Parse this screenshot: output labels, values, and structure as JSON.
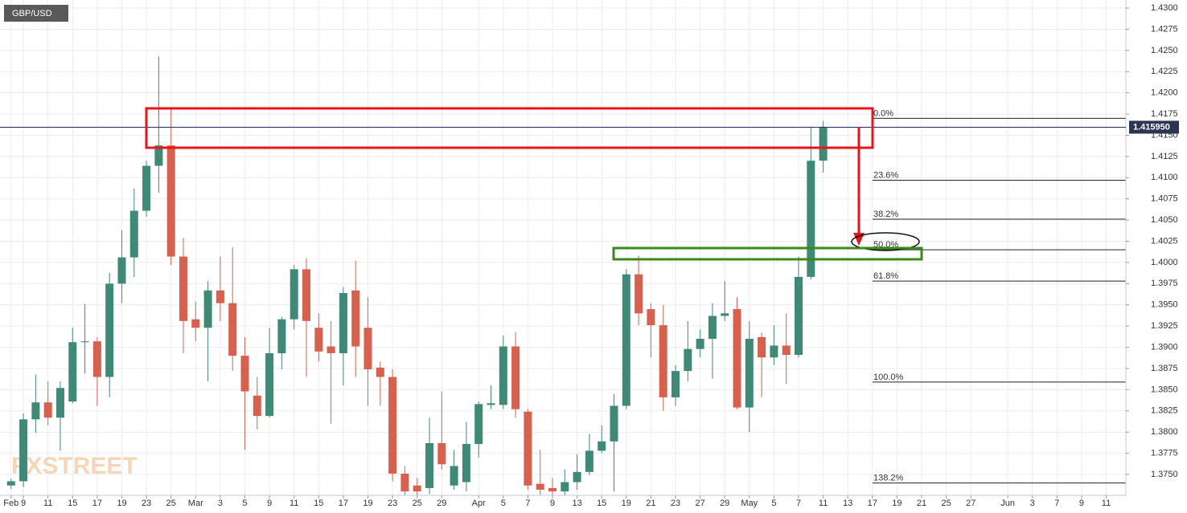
{
  "chart_data": {
    "type": "candlestick",
    "title": "GBP/USD",
    "watermark": "FXSTREET",
    "up_color": "#3e8a77",
    "down_color": "#d9604c",
    "xlim": [
      -0.9,
      90.6
    ],
    "ylim": [
      1.37254,
      1.43095
    ],
    "grid": true,
    "xticks": [
      {
        "value": 0,
        "label": "Feb"
      },
      {
        "value": 1,
        "label": "9"
      },
      {
        "value": 3,
        "label": "11"
      },
      {
        "value": 5,
        "label": "15"
      },
      {
        "value": 7,
        "label": "17"
      },
      {
        "value": 9,
        "label": "19"
      },
      {
        "value": 11,
        "label": "23"
      },
      {
        "value": 13,
        "label": "25"
      },
      {
        "value": 15,
        "label": "Mar"
      },
      {
        "value": 17,
        "label": "3"
      },
      {
        "value": 19,
        "label": "5"
      },
      {
        "value": 21,
        "label": "9"
      },
      {
        "value": 23,
        "label": "11"
      },
      {
        "value": 25,
        "label": "15"
      },
      {
        "value": 27,
        "label": "17"
      },
      {
        "value": 29,
        "label": "19"
      },
      {
        "value": 31,
        "label": "23"
      },
      {
        "value": 33,
        "label": "25"
      },
      {
        "value": 35,
        "label": "29"
      },
      {
        "value": 38,
        "label": "Apr"
      },
      {
        "value": 40,
        "label": "5"
      },
      {
        "value": 42,
        "label": "7"
      },
      {
        "value": 44,
        "label": "9"
      },
      {
        "value": 46,
        "label": "13"
      },
      {
        "value": 48,
        "label": "15"
      },
      {
        "value": 50,
        "label": "19"
      },
      {
        "value": 52,
        "label": "21"
      },
      {
        "value": 54,
        "label": "23"
      },
      {
        "value": 56,
        "label": "27"
      },
      {
        "value": 58,
        "label": "29"
      },
      {
        "value": 60,
        "label": "May"
      },
      {
        "value": 62,
        "label": "5"
      },
      {
        "value": 64,
        "label": "7"
      },
      {
        "value": 66,
        "label": "11"
      },
      {
        "value": 68,
        "label": "13"
      },
      {
        "value": 70,
        "label": "17"
      },
      {
        "value": 72,
        "label": "19"
      },
      {
        "value": 74,
        "label": "21"
      },
      {
        "value": 76,
        "label": "25"
      },
      {
        "value": 78,
        "label": "27"
      },
      {
        "value": 81,
        "label": "Jun"
      },
      {
        "value": 83,
        "label": "3"
      },
      {
        "value": 85,
        "label": "7"
      },
      {
        "value": 87,
        "label": "9"
      },
      {
        "value": 89,
        "label": "11"
      }
    ],
    "yticks": [
      {
        "value": 1.43,
        "label": "1.4300"
      },
      {
        "value": 1.4275,
        "label": "1.4275"
      },
      {
        "value": 1.425,
        "label": "1.4250"
      },
      {
        "value": 1.4225,
        "label": "1.4225"
      },
      {
        "value": 1.42,
        "label": "1.4200"
      },
      {
        "value": 1.4175,
        "label": "1.4175"
      },
      {
        "value": 1.415,
        "label": "1.4150"
      },
      {
        "value": 1.4125,
        "label": "1.4125"
      },
      {
        "value": 1.41,
        "label": "1.4100"
      },
      {
        "value": 1.4075,
        "label": "1.4075"
      },
      {
        "value": 1.405,
        "label": "1.4050"
      },
      {
        "value": 1.4025,
        "label": "1.4025"
      },
      {
        "value": 1.4,
        "label": "1.4000"
      },
      {
        "value": 1.3975,
        "label": "1.3975"
      },
      {
        "value": 1.395,
        "label": "1.3950"
      },
      {
        "value": 1.3925,
        "label": "1.3925"
      },
      {
        "value": 1.39,
        "label": "1.3900"
      },
      {
        "value": 1.3875,
        "label": "1.3875"
      },
      {
        "value": 1.385,
        "label": "1.3850"
      },
      {
        "value": 1.3825,
        "label": "1.3825"
      },
      {
        "value": 1.38,
        "label": "1.3800"
      },
      {
        "value": 1.3775,
        "label": "1.3775"
      },
      {
        "value": 1.375,
        "label": "1.3750"
      }
    ],
    "open": [
      1.3737,
      1.3742,
      1.3815,
      1.3835,
      1.3817,
      1.3836,
      1.3906,
      1.3907,
      1.3865,
      1.3975,
      1.4006,
      1.4061,
      1.4114,
      1.4138,
      1.4007,
      1.3933,
      1.3923,
      1.3967,
      1.3952,
      1.389,
      1.3843,
      1.3819,
      1.3893,
      1.3933,
      1.3992,
      1.3923,
      1.3901,
      1.3893,
      1.3967,
      1.3923,
      1.3876,
      1.3865,
      1.3751,
      1.3737,
      1.3734,
      1.3787,
      1.3737,
      1.3741,
      1.3786,
      1.3832,
      1.3832,
      1.3901,
      1.3824,
      1.3739,
      1.3734,
      1.373,
      1.3741,
      1.3753,
      1.3778,
      1.3789,
      1.3831,
      1.3986,
      1.3945,
      1.3926,
      1.3841,
      1.3872,
      1.3898,
      1.391,
      1.3937,
      1.3945,
      1.3829,
      1.3912,
      1.3888,
      1.3902,
      1.3891,
      1.3983,
      1.412
    ],
    "high": [
      1.3745,
      1.3822,
      1.3868,
      1.386,
      1.386,
      1.3923,
      1.3951,
      1.3912,
      1.3988,
      1.4038,
      1.4087,
      1.412,
      1.4243,
      1.4182,
      1.4029,
      1.3954,
      1.3978,
      1.4007,
      1.4018,
      1.3912,
      1.3865,
      1.3923,
      1.3936,
      1.3997,
      1.4005,
      1.394,
      1.3931,
      1.3971,
      1.4002,
      1.3959,
      1.3883,
      1.3874,
      1.376,
      1.3746,
      1.3817,
      1.3848,
      1.3779,
      1.3812,
      1.3836,
      1.3855,
      1.3914,
      1.3918,
      1.3827,
      1.3779,
      1.3746,
      1.3756,
      1.3774,
      1.3798,
      1.3808,
      1.3845,
      1.3992,
      1.4008,
      1.3952,
      1.395,
      1.3879,
      1.3931,
      1.3921,
      1.3952,
      1.3978,
      1.3959,
      1.3931,
      1.3917,
      1.3926,
      1.394,
      1.4007,
      1.416,
      1.4167
    ],
    "low": [
      1.3733,
      1.3735,
      1.3799,
      1.3808,
      1.3778,
      1.3834,
      1.3869,
      1.3831,
      1.3841,
      1.3952,
      1.3983,
      1.4054,
      1.4082,
      1.3997,
      1.3893,
      1.3907,
      1.386,
      1.3931,
      1.3872,
      1.3779,
      1.3803,
      1.3817,
      1.3874,
      1.3921,
      1.3865,
      1.3883,
      1.381,
      1.3855,
      1.3865,
      1.3831,
      1.3831,
      1.3742,
      1.3718,
      1.3718,
      1.3727,
      1.3756,
      1.3732,
      1.373,
      1.377,
      1.3827,
      1.3827,
      1.3817,
      1.3732,
      1.3723,
      1.3718,
      1.3723,
      1.3732,
      1.3749,
      1.3775,
      1.373,
      1.3827,
      1.3926,
      1.3888,
      1.3825,
      1.3831,
      1.386,
      1.3888,
      1.3863,
      1.3931,
      1.3827,
      1.38,
      1.3841,
      1.3879,
      1.3857,
      1.3888,
      1.398,
      1.4106
    ],
    "close": [
      1.3742,
      1.3815,
      1.3835,
      1.3817,
      1.3852,
      1.3906,
      1.3907,
      1.3865,
      1.3975,
      1.4006,
      1.4061,
      1.4114,
      1.4138,
      1.4007,
      1.3931,
      1.3923,
      1.3967,
      1.3952,
      1.389,
      1.3848,
      1.3819,
      1.3893,
      1.3933,
      1.3992,
      1.3931,
      1.3895,
      1.3893,
      1.3964,
      1.3901,
      1.3874,
      1.3865,
      1.3751,
      1.373,
      1.373,
      1.3787,
      1.3762,
      1.376,
      1.3786,
      1.3833,
      1.3834,
      1.3901,
      1.3827,
      1.3737,
      1.3732,
      1.373,
      1.3741,
      1.3753,
      1.3778,
      1.3789,
      1.3831,
      1.3986,
      1.394,
      1.3926,
      1.3841,
      1.3872,
      1.3898,
      1.391,
      1.3937,
      1.394,
      1.3829,
      1.391,
      1.3888,
      1.3902,
      1.3891,
      1.3983,
      1.412,
      1.416
    ],
    "last_price": {
      "value": 1.41595,
      "label": "1.415950"
    },
    "fib_levels": [
      {
        "label": "0.0%",
        "price": 1.417
      },
      {
        "label": "23.6%",
        "price": 1.4097
      },
      {
        "label": "38.2%",
        "price": 1.4051
      },
      {
        "label": "50.0%",
        "price": 1.4015
      },
      {
        "label": "61.8%",
        "price": 1.3978
      },
      {
        "label": "100.0%",
        "price": 1.3859
      },
      {
        "label": "138.2%",
        "price": 1.374
      }
    ]
  }
}
